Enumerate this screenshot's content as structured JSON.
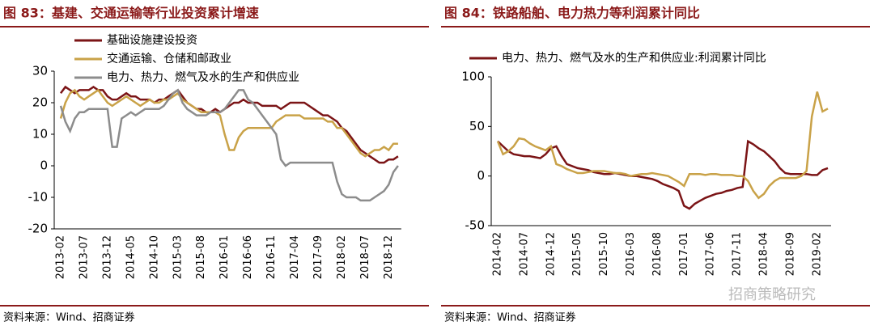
{
  "watermark": "招商策略研究",
  "chart_data": [
    {
      "type": "line",
      "title": "图 83：基建、交通运输等行业投资累计增速",
      "source": "资料来源：Wind、招商证券",
      "categories": [
        "2013-02",
        null,
        null,
        null,
        null,
        "2013-07",
        null,
        null,
        null,
        null,
        "2013-12",
        null,
        null,
        null,
        null,
        "2014-05",
        null,
        null,
        null,
        null,
        "2014-10",
        null,
        null,
        null,
        null,
        "2015-03",
        null,
        null,
        null,
        null,
        "2015-08",
        null,
        null,
        null,
        null,
        "2016-01",
        null,
        null,
        null,
        null,
        "2016-06",
        null,
        null,
        null,
        null,
        "2016-11",
        null,
        null,
        null,
        null,
        "2017-04",
        null,
        null,
        null,
        null,
        "2017-09",
        null,
        null,
        null,
        null,
        "2018-02",
        null,
        null,
        null,
        null,
        "2018-07",
        null,
        null,
        null,
        null,
        "2018-12",
        null,
        null
      ],
      "ylim": [
        -20,
        30
      ],
      "yticks": [
        -20,
        -10,
        0,
        10,
        20,
        30
      ],
      "series": [
        {
          "name": "基础设施建设投资",
          "color": "#7b1416",
          "values": [
            23,
            25,
            24,
            23,
            24,
            24,
            24,
            25,
            24,
            24,
            22,
            21,
            21,
            22,
            23,
            22,
            22,
            21,
            21,
            21,
            20,
            21,
            21,
            22,
            23,
            24,
            22,
            20,
            19,
            18,
            18,
            17,
            17,
            18,
            17,
            18,
            19,
            20,
            20,
            21,
            20,
            20,
            20,
            19,
            19,
            19,
            19,
            18,
            19,
            20,
            20,
            20,
            20,
            19,
            18,
            17,
            16,
            16,
            15,
            14,
            12,
            11,
            9,
            7,
            5,
            4,
            3,
            2,
            1,
            1,
            2,
            2,
            3
          ]
        },
        {
          "name": "交通运输、仓储和邮政业",
          "color": "#c9a248",
          "values": [
            15,
            20,
            23,
            24,
            22,
            21,
            22,
            23,
            24,
            22,
            20,
            19,
            20,
            21,
            22,
            21,
            20,
            19,
            20,
            21,
            20,
            20,
            21,
            21,
            22,
            23,
            21,
            20,
            19,
            18,
            17,
            17,
            17,
            17,
            16,
            10,
            5,
            5,
            9,
            11,
            12,
            12,
            12,
            12,
            12,
            12,
            14,
            15,
            16,
            16,
            16,
            16,
            15,
            15,
            15,
            15,
            15,
            14,
            14,
            12,
            12,
            10,
            8,
            6,
            4,
            3,
            4,
            5,
            5,
            6,
            5,
            7,
            7
          ]
        },
        {
          "name": "电力、热力、燃气及水的生产和供应业",
          "color": "#8c8c8c",
          "values": [
            19,
            14,
            11,
            15,
            17,
            17,
            18,
            18,
            18,
            18,
            18,
            6,
            6,
            15,
            16,
            17,
            16,
            17,
            18,
            18,
            18,
            18,
            19,
            21,
            23,
            24,
            20,
            18,
            17,
            16,
            16,
            16,
            17,
            17,
            17,
            18,
            20,
            22,
            24,
            24,
            21,
            20,
            18,
            16,
            14,
            12,
            10,
            2,
            0,
            1,
            1,
            1,
            1,
            1,
            1,
            1,
            1,
            1,
            1,
            -5,
            -9,
            -10,
            -10,
            -10,
            -11,
            -11,
            -11,
            -10,
            -9,
            -8,
            -6,
            -2,
            0
          ]
        }
      ]
    },
    {
      "type": "line",
      "title": "图 84：铁路船舶、电力热力等利润累计同比",
      "source": "资料来源：Wind、招商证券",
      "categories": [
        "2014-02",
        null,
        null,
        null,
        null,
        "2014-07",
        null,
        null,
        null,
        null,
        "2014-12",
        null,
        null,
        null,
        null,
        "2015-05",
        null,
        null,
        null,
        null,
        "2015-10",
        null,
        null,
        null,
        null,
        "2016-03",
        null,
        null,
        null,
        null,
        "2016-08",
        null,
        null,
        null,
        null,
        "2017-01",
        null,
        null,
        null,
        null,
        "2017-06",
        null,
        null,
        null,
        null,
        "2017-11",
        null,
        null,
        null,
        null,
        "2018-04",
        null,
        null,
        null,
        null,
        "2018-09",
        null,
        null,
        null,
        null,
        "2019-02",
        null,
        null
      ],
      "ylim": [
        -50,
        100
      ],
      "yticks": [
        -50,
        0,
        50,
        100
      ],
      "series": [
        {
          "name": "电力、热力、燃气及水的生产和供应业:利润累计同比",
          "color": "#7b1416",
          "values": [
            35,
            30,
            25,
            22,
            21,
            20,
            20,
            19,
            18,
            22,
            28,
            30,
            20,
            12,
            10,
            8,
            7,
            6,
            4,
            3,
            2,
            2,
            3,
            2,
            1,
            0,
            0,
            -1,
            -2,
            -3,
            -5,
            -8,
            -10,
            -12,
            -15,
            -30,
            -33,
            -28,
            -25,
            -22,
            -20,
            -18,
            -17,
            -15,
            -14,
            -12,
            -11,
            35,
            32,
            28,
            25,
            20,
            15,
            8,
            3,
            2,
            2,
            2,
            2,
            1,
            1,
            6,
            8
          ]
        },
        {
          "color": "#c9a248",
          "values": [
            35,
            22,
            25,
            30,
            38,
            37,
            33,
            30,
            28,
            26,
            30,
            12,
            10,
            7,
            5,
            3,
            3,
            4,
            5,
            5,
            5,
            4,
            3,
            3,
            2,
            0,
            1,
            2,
            2,
            3,
            2,
            1,
            0,
            -3,
            -6,
            -10,
            2,
            2,
            2,
            1,
            2,
            2,
            1,
            1,
            1,
            0,
            0,
            -5,
            -15,
            -22,
            -18,
            -10,
            -5,
            -2,
            -2,
            -2,
            -2,
            0,
            5,
            60,
            85,
            65,
            68
          ]
        }
      ]
    }
  ]
}
